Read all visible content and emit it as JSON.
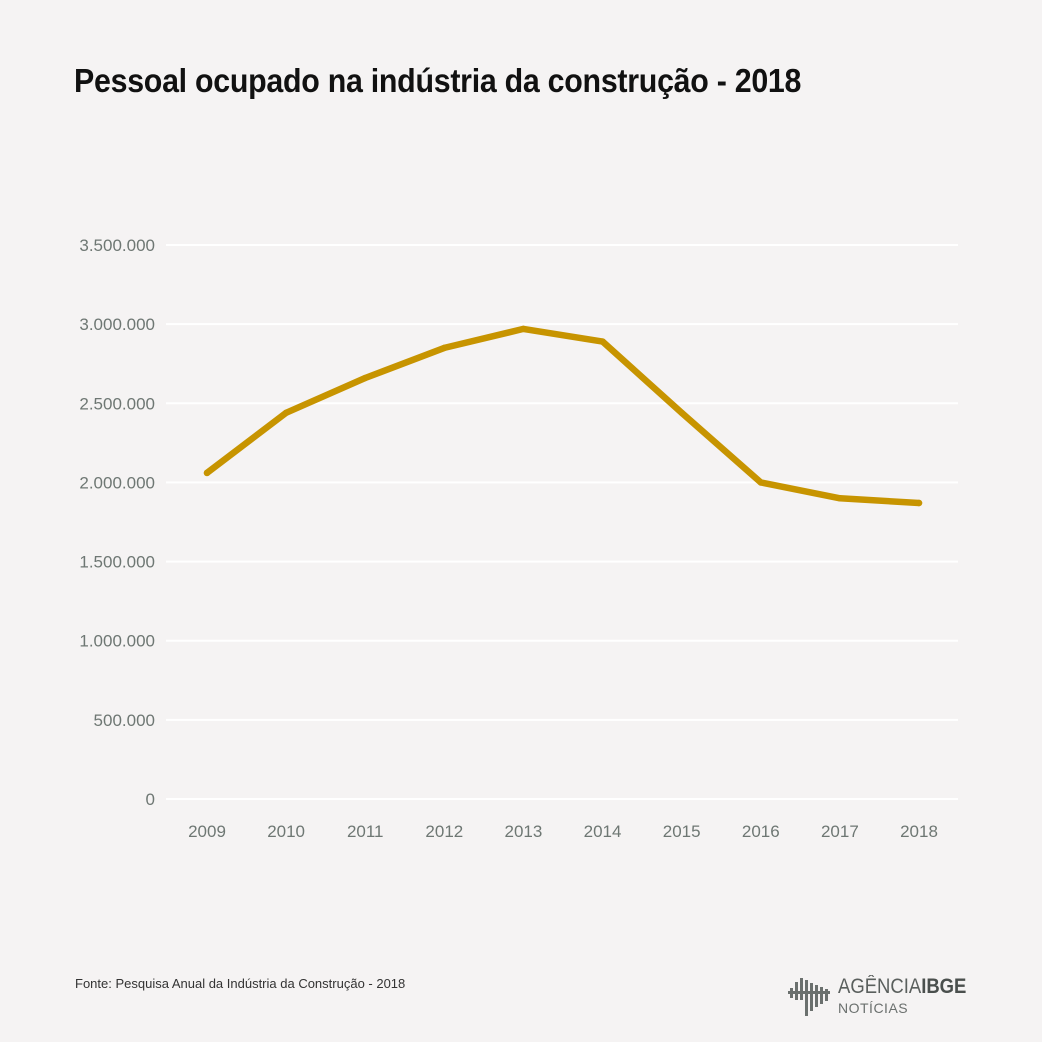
{
  "title": "Pessoal ocupado na indústria da construção - 2018",
  "source": "Fonte:  Pesquisa Anual da Indústria da Construção - 2018",
  "logo": {
    "line1": "AGÊNCIA",
    "line1_bold": "IBGE",
    "line2": "NOTÍCIAS",
    "icon": "ibge-bars-logo-icon"
  },
  "colors": {
    "background": "#f5f3f3",
    "line": "#c79400",
    "grid": "#ffffff",
    "tick_text": "#6e7773"
  },
  "chart_data": {
    "type": "line",
    "title": "Pessoal ocupado na indústria da construção - 2018",
    "xlabel": "",
    "ylabel": "",
    "x": [
      "2009",
      "2010",
      "2011",
      "2012",
      "2013",
      "2014",
      "2015",
      "2016",
      "2017",
      "2018"
    ],
    "series": [
      {
        "values": [
          2060000,
          2440000,
          2660000,
          2850000,
          2970000,
          2890000,
          2440000,
          2000000,
          1900000,
          1870000
        ]
      }
    ],
    "yticks": [
      0,
      500000,
      1000000,
      1500000,
      2000000,
      2500000,
      3000000,
      3500000
    ],
    "ytick_labels": [
      "0",
      "500.000",
      "1.000.000",
      "1.500.000",
      "2.000.000",
      "2.500.000",
      "3.000.000",
      "3.500.000"
    ],
    "ylim": [
      0,
      3500000
    ],
    "grid": true,
    "legend": "none"
  }
}
